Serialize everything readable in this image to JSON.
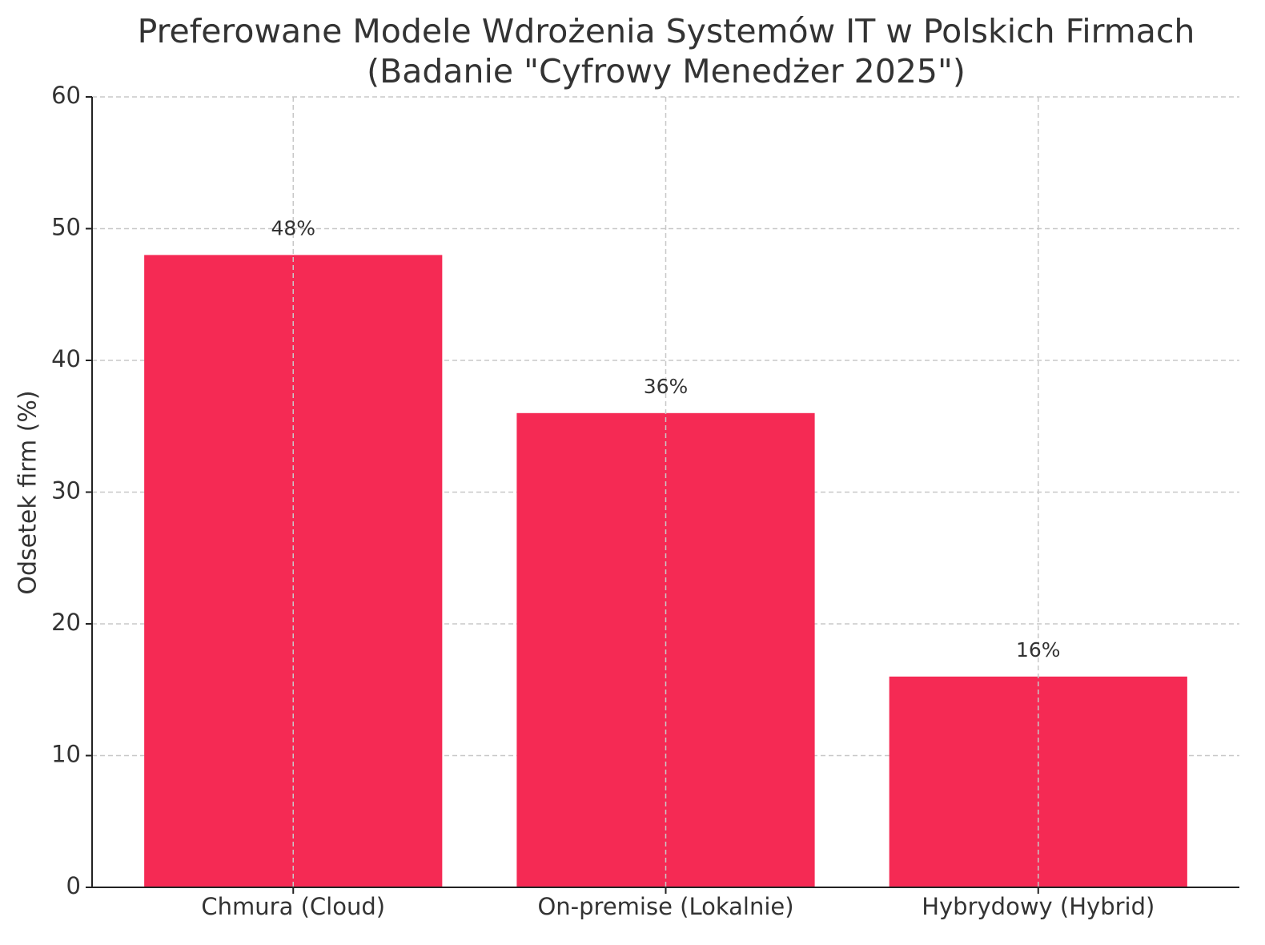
{
  "chart_data": {
    "type": "bar",
    "title": [
      "Preferowane Modele Wdrożenia Systemów IT w Polskich Firmach",
      "(Badanie \"Cyfrowy Menedżer 2025\")"
    ],
    "y_label": "Odsetek firm (%)",
    "categories": [
      "Chmura (Cloud)",
      "On-premise (Lokalnie)",
      "Hybrydowy (Hybrid)"
    ],
    "values": [
      48,
      36,
      16
    ],
    "value_labels": [
      "48%",
      "36%",
      "16%"
    ],
    "color": "#f52a54",
    "ylim": [
      0,
      60
    ],
    "yticks": [
      0,
      10,
      20,
      30,
      40,
      50,
      60
    ],
    "grid": true
  }
}
